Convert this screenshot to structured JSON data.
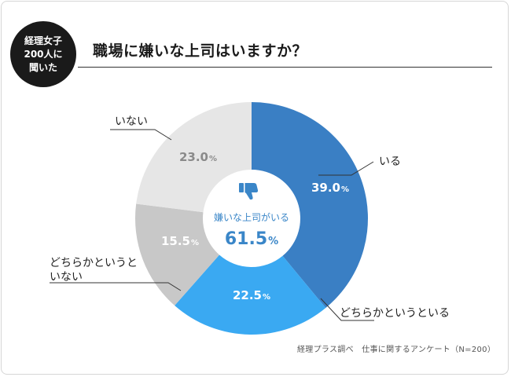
{
  "badge": {
    "line1": "経理女子",
    "line2": "200人に",
    "line3": "聞いた"
  },
  "title": "職場に嫌いな上司はいますか？",
  "source": "経理プラス調べ　仕事に関するアンケート（N=200）",
  "center": {
    "label": "嫌いな上司がいる",
    "value": "61.5",
    "unit": "%"
  },
  "icon": "thumbs-down-icon",
  "colors": {
    "iru": "#3a7fc4",
    "dochirakato_iru": "#3aa9f2",
    "dochirakato_inai": "#c8c8c8",
    "inai": "#e6e6e6",
    "text_dark": "#222222",
    "center_accent": "#3a86c8"
  },
  "chart_data": {
    "type": "pie",
    "donut": true,
    "title": "職場に嫌いな上司はいますか？",
    "unit": "%",
    "slices": [
      {
        "label": "いる",
        "value": 39.0,
        "color": "#3a7fc4",
        "text_color": "#ffffff"
      },
      {
        "label": "どちらかというといる",
        "value": 22.5,
        "color": "#3aa9f2",
        "text_color": "#ffffff"
      },
      {
        "label": "どちらかというと\nいない",
        "value": 15.5,
        "color": "#c8c8c8",
        "text_color": "#ffffff"
      },
      {
        "label": "いない",
        "value": 23.0,
        "color": "#e6e6e6",
        "text_color": "#8a8a8a"
      }
    ],
    "start": "12 o'clock",
    "direction": "clockwise"
  }
}
